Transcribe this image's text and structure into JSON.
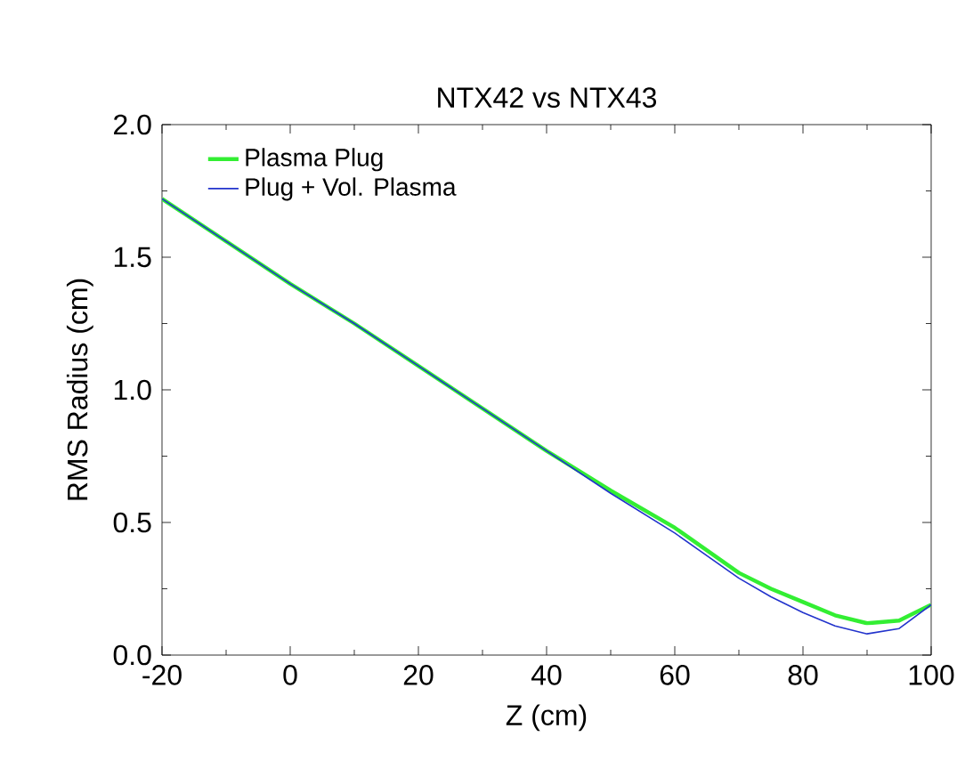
{
  "chart_data": {
    "type": "line",
    "title": "NTX42 vs NTX43",
    "xlabel": "Z (cm)",
    "ylabel": "RMS Radius (cm)",
    "x": [
      -20,
      -10,
      0,
      10,
      20,
      30,
      40,
      50,
      60,
      70,
      75,
      80,
      85,
      90,
      95,
      100
    ],
    "series": [
      {
        "name": "Plasma Plug",
        "color": "#33ee33",
        "values": [
          1.72,
          1.56,
          1.4,
          1.25,
          1.09,
          0.93,
          0.77,
          0.62,
          0.48,
          0.31,
          0.25,
          0.2,
          0.15,
          0.12,
          0.13,
          0.19
        ]
      },
      {
        "name": "Plug + Vol. Plasma",
        "color": "#2233cc",
        "values": [
          1.72,
          1.56,
          1.4,
          1.25,
          1.09,
          0.93,
          0.77,
          0.61,
          0.46,
          0.29,
          0.22,
          0.16,
          0.11,
          0.08,
          0.1,
          0.19
        ]
      }
    ],
    "xlim": [
      -20,
      100
    ],
    "ylim": [
      0,
      2
    ],
    "xticks": [
      -20,
      0,
      20,
      40,
      60,
      80,
      100
    ],
    "yticks": [
      {
        "value": 0,
        "label": "0.0"
      },
      {
        "value": 0.5,
        "label": "0.5"
      },
      {
        "value": 1,
        "label": "1.0"
      },
      {
        "value": 1.5,
        "label": "1.5"
      },
      {
        "value": 2,
        "label": "2.0"
      }
    ],
    "legend": "top left",
    "grid": false,
    "marker": "none",
    "line_style": "solid"
  }
}
